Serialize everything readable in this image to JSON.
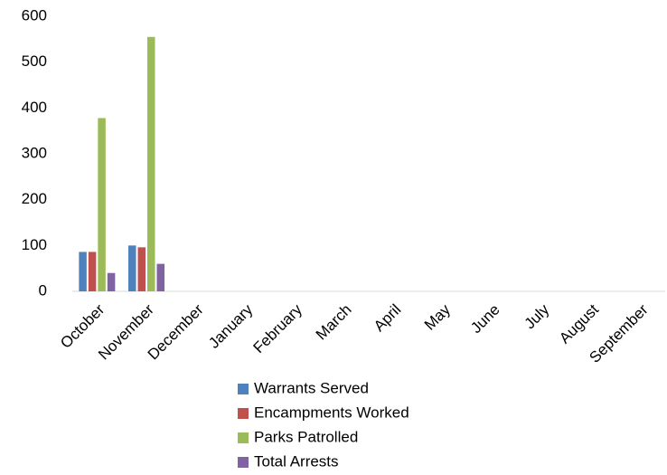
{
  "chart_data": {
    "type": "bar",
    "categories": [
      "October",
      "November",
      "December",
      "January",
      "February",
      "March",
      "April",
      "May",
      "June",
      "July",
      "August",
      "September"
    ],
    "series": [
      {
        "name": "Warrants Served",
        "color": "#4f81bd",
        "values": [
          86,
          100,
          null,
          null,
          null,
          null,
          null,
          null,
          null,
          null,
          null,
          null
        ]
      },
      {
        "name": "Encampments Worked",
        "color": "#c0504d",
        "values": [
          86,
          96,
          null,
          null,
          null,
          null,
          null,
          null,
          null,
          null,
          null,
          null
        ]
      },
      {
        "name": "Parks Patrolled",
        "color": "#9bbb59",
        "values": [
          378,
          555,
          null,
          null,
          null,
          null,
          null,
          null,
          null,
          null,
          null,
          null
        ]
      },
      {
        "name": "Total Arrests",
        "color": "#8064a2",
        "values": [
          40,
          60,
          null,
          null,
          null,
          null,
          null,
          null,
          null,
          null,
          null,
          null
        ]
      }
    ],
    "ylim": [
      0,
      600
    ],
    "yticks": [
      0,
      100,
      200,
      300,
      400,
      500,
      600
    ],
    "grid": false,
    "legend": "bottom"
  }
}
